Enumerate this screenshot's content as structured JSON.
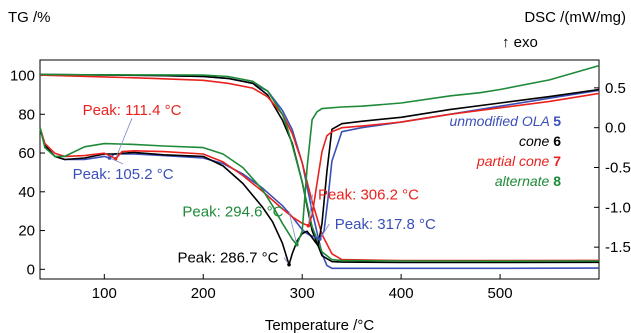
{
  "chart_data": {
    "type": "line",
    "left_axis_title": "TG /%",
    "right_axis_title": "DSC /(mW/mg)",
    "exo_label": "↑ exo",
    "xlabel": "Temperature /°C",
    "xlim": [
      35,
      600
    ],
    "tg_ylim": [
      -5,
      108
    ],
    "dsc_ylim": [
      -1.9,
      0.85
    ],
    "x_ticks": [
      100,
      200,
      300,
      400,
      500
    ],
    "tg_ticks": [
      0,
      20,
      40,
      60,
      80,
      100
    ],
    "dsc_ticks": [
      -1.5,
      -1.0,
      -0.5,
      0.0,
      0.5
    ],
    "dsc_tick_labels": [
      "-1.5",
      "-1.0",
      "-0.5",
      "0.0",
      "0.5"
    ],
    "legend": [
      {
        "name": "unmodified OLA",
        "num": "5",
        "color": "#3a4fb8"
      },
      {
        "name": "cone",
        "num": "6",
        "color": "#000000"
      },
      {
        "name": "partial cone",
        "num": "7",
        "color": "#e8231f"
      },
      {
        "name": "alternate",
        "num": "8",
        "color": "#1e8a38"
      }
    ],
    "peaks": [
      {
        "text": "Peak: 111.4 °C",
        "color": "#e8231f",
        "x": 111.4,
        "dsc": -0.39,
        "lx": 128,
        "ly": 0.22
      },
      {
        "text": "Peak: 105.2 °C",
        "color": "#3a4fb8",
        "x": 105.2,
        "dsc": -0.38,
        "lx": 119,
        "ly": -0.58
      },
      {
        "text": "Peak: 294.6 °C",
        "color": "#1e8a38",
        "x": 294.6,
        "dsc": -1.47,
        "lx": 230,
        "ly": -1.05
      },
      {
        "text": "Peak: 286.7 °C",
        "color": "#000000",
        "x": 286.7,
        "dsc": -1.72,
        "lx": 225,
        "ly": -1.63
      },
      {
        "text": "Peak: 306.2 °C",
        "color": "#e8231f",
        "x": 306.2,
        "dsc": -1.23,
        "lx": 367,
        "ly": -0.84
      },
      {
        "text": "Peak: 317.8 °C",
        "color": "#3a4fb8",
        "x": 317.8,
        "dsc": -1.4,
        "lx": 384,
        "ly": -1.21
      }
    ],
    "series": [
      {
        "name": "unmodified OLA 5 TG",
        "axis": "tg",
        "color": "#3a4fb8",
        "x": [
          35,
          100,
          150,
          200,
          225,
          250,
          265,
          280,
          290,
          300,
          310,
          320,
          325,
          330,
          400,
          500,
          600
        ],
        "y": [
          100.5,
          100.3,
          100,
          99.5,
          98.5,
          96,
          92,
          82,
          72,
          55,
          30,
          8,
          2,
          0.5,
          0.5,
          0.5,
          0.6
        ]
      },
      {
        "name": "cone 6 TG",
        "axis": "tg",
        "color": "#000000",
        "x": [
          35,
          100,
          150,
          200,
          225,
          250,
          265,
          280,
          290,
          300,
          310,
          320,
          330,
          340,
          400,
          500,
          600
        ],
        "y": [
          100.5,
          100.3,
          100,
          99.5,
          98.5,
          96,
          90,
          77,
          65,
          45,
          20,
          7,
          4,
          3.7,
          3.5,
          3.5,
          3.6
        ]
      },
      {
        "name": "partial cone 7 TG",
        "axis": "tg",
        "color": "#e8231f",
        "x": [
          35,
          100,
          150,
          200,
          225,
          250,
          265,
          280,
          290,
          300,
          310,
          320,
          330,
          340,
          400,
          500,
          600
        ],
        "y": [
          100.2,
          99.3,
          98.5,
          97.5,
          96,
          93.5,
          89,
          80,
          70,
          55,
          35,
          18,
          8,
          5,
          4.5,
          4.5,
          4.6
        ]
      },
      {
        "name": "alternate 8 TG",
        "axis": "tg",
        "color": "#1e8a38",
        "x": [
          35,
          100,
          150,
          200,
          225,
          250,
          265,
          280,
          285,
          290,
          300,
          310,
          320,
          330,
          340,
          400,
          500,
          600
        ],
        "y": [
          100.5,
          100.3,
          100.3,
          100.2,
          99.5,
          97,
          92,
          80,
          73,
          64,
          45,
          22,
          9,
          5,
          4.5,
          4.3,
          4.2,
          4.3
        ]
      },
      {
        "name": "unmodified OLA 5 DSC",
        "axis": "dsc",
        "color": "#3a4fb8",
        "x": [
          35,
          40,
          50,
          60,
          80,
          100,
          105.2,
          110,
          130,
          160,
          200,
          220,
          240,
          260,
          280,
          290,
          300,
          305,
          310,
          317.8,
          322,
          326,
          330,
          340,
          360,
          400,
          450,
          500,
          550,
          600
        ],
        "y": [
          0.0,
          -0.22,
          -0.36,
          -0.4,
          -0.4,
          -0.36,
          -0.38,
          -0.33,
          -0.33,
          -0.35,
          -0.38,
          -0.45,
          -0.58,
          -0.76,
          -0.98,
          -1.12,
          -1.28,
          -1.33,
          -1.36,
          -1.4,
          -1.3,
          -0.9,
          -0.42,
          -0.05,
          0.0,
          0.07,
          0.17,
          0.27,
          0.37,
          0.47
        ]
      },
      {
        "name": "cone 6 DSC",
        "axis": "dsc",
        "color": "#000000",
        "x": [
          35,
          40,
          50,
          60,
          80,
          100,
          110,
          130,
          160,
          200,
          220,
          240,
          260,
          270,
          280,
          286.7,
          290,
          295,
          300,
          305,
          310,
          316,
          320,
          325,
          330,
          340,
          360,
          400,
          450,
          500,
          550,
          600
        ],
        "y": [
          0.0,
          -0.22,
          -0.36,
          -0.4,
          -0.38,
          -0.33,
          -0.33,
          -0.31,
          -0.34,
          -0.36,
          -0.48,
          -0.7,
          -1.0,
          -1.18,
          -1.45,
          -1.72,
          -1.58,
          -1.42,
          -1.33,
          -1.3,
          -1.38,
          -1.48,
          -1.2,
          -0.55,
          -0.02,
          0.05,
          0.08,
          0.13,
          0.23,
          0.31,
          0.39,
          0.48
        ]
      },
      {
        "name": "partial cone 7 DSC",
        "axis": "dsc",
        "color": "#e8231f",
        "x": [
          35,
          40,
          50,
          60,
          80,
          100,
          111.4,
          118,
          130,
          160,
          200,
          220,
          240,
          260,
          280,
          290,
          300,
          306.2,
          310,
          315,
          320,
          325,
          330,
          340,
          360,
          400,
          450,
          500,
          550,
          600
        ],
        "y": [
          0.0,
          -0.2,
          -0.32,
          -0.36,
          -0.35,
          -0.32,
          -0.39,
          -0.3,
          -0.29,
          -0.3,
          -0.33,
          -0.43,
          -0.6,
          -0.8,
          -1.02,
          -1.12,
          -1.2,
          -1.23,
          -1.1,
          -0.7,
          -0.3,
          -0.1,
          -0.05,
          0.0,
          0.02,
          0.07,
          0.17,
          0.25,
          0.33,
          0.43
        ]
      },
      {
        "name": "alternate 8 DSC",
        "axis": "dsc",
        "color": "#1e8a38",
        "x": [
          35,
          40,
          50,
          60,
          80,
          100,
          130,
          160,
          200,
          220,
          240,
          260,
          270,
          280,
          290,
          294.6,
          300,
          305,
          310,
          315,
          320,
          340,
          360,
          400,
          450,
          480,
          500,
          550,
          600
        ],
        "y": [
          0.0,
          -0.25,
          -0.36,
          -0.36,
          -0.24,
          -0.2,
          -0.21,
          -0.23,
          -0.25,
          -0.33,
          -0.5,
          -0.78,
          -0.98,
          -1.2,
          -1.4,
          -1.47,
          -1.3,
          -0.5,
          0.1,
          0.2,
          0.24,
          0.26,
          0.27,
          0.31,
          0.4,
          0.44,
          0.48,
          0.6,
          0.78
        ]
      }
    ]
  }
}
